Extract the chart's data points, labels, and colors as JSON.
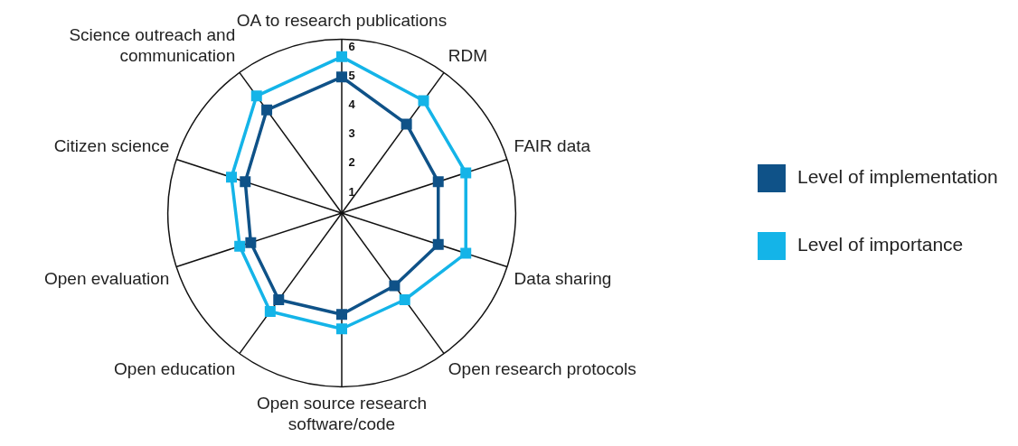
{
  "chart_data": {
    "type": "radar",
    "categories": [
      "OA to research publications",
      "RDM",
      "FAIR data",
      "Data sharing",
      "Open research protocols",
      "Open source research software/code",
      "Open education",
      "Open evaluation",
      "Citizen science",
      "Science outreach and communication"
    ],
    "series": [
      {
        "name": "Level of implementation",
        "color": "#0f5288",
        "values": [
          4.7,
          3.8,
          3.5,
          3.5,
          3.1,
          3.5,
          3.7,
          3.3,
          3.5,
          4.4
        ]
      },
      {
        "name": "Level of importance",
        "color": "#14b4e8",
        "values": [
          5.4,
          4.8,
          4.5,
          4.5,
          3.7,
          4.0,
          4.2,
          3.7,
          4.0,
          5.0
        ]
      }
    ],
    "ylim": [
      0,
      6
    ],
    "yticks": [
      1,
      2,
      3,
      4,
      5,
      6
    ],
    "grid": false,
    "legend": "right",
    "marker": "square"
  }
}
